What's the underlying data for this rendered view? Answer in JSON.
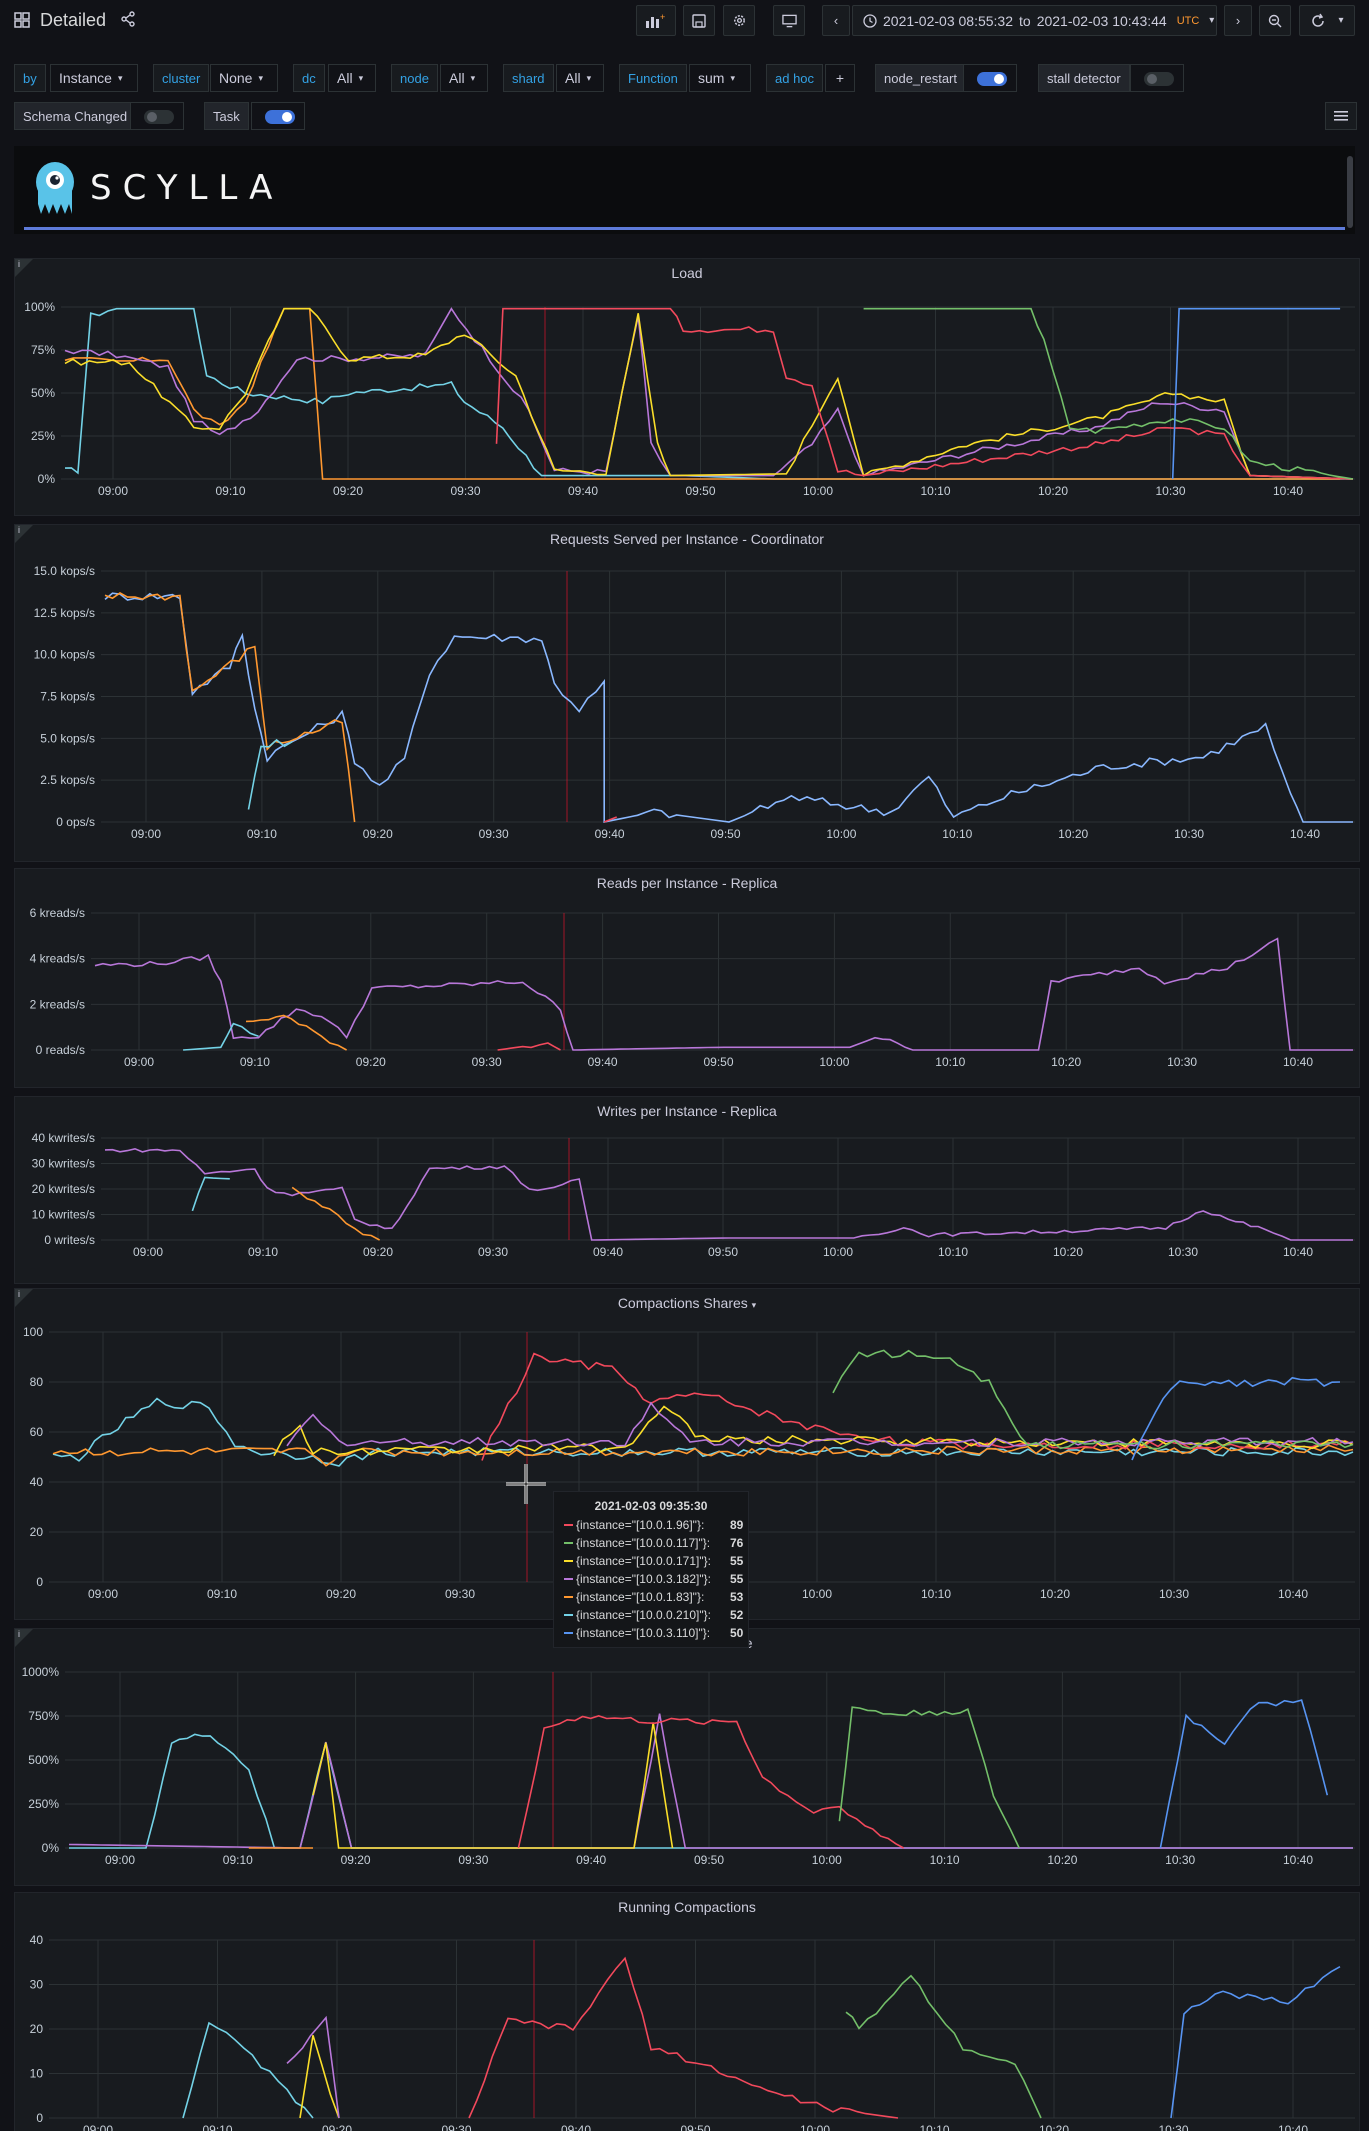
{
  "header": {
    "title": "Detailed",
    "time_from": "2021-02-03 08:55:32",
    "time_to": "2021-02-03 10:43:44",
    "time_sep": "to",
    "timezone": "UTC"
  },
  "variables": [
    {
      "label": "by",
      "value": "Instance"
    },
    {
      "label": "cluster",
      "value": "None"
    },
    {
      "label": "dc",
      "value": "All"
    },
    {
      "label": "node",
      "value": "All"
    },
    {
      "label": "shard",
      "value": "All"
    },
    {
      "label": "Function",
      "value": "sum"
    },
    {
      "label": "ad hoc",
      "value": "+"
    }
  ],
  "annotation_toggles": [
    {
      "label": "node_restart",
      "on": true
    },
    {
      "label": "stall detector",
      "on": false
    },
    {
      "label": "Schema Changed",
      "on": false
    },
    {
      "label": "Task",
      "on": true
    }
  ],
  "logo": {
    "text": "SCYLLA"
  },
  "series_colors": [
    "#f2495c",
    "#73bf69",
    "#fade2a",
    "#b877d9",
    "#ff9830",
    "#8ab8ff",
    "#5794f2",
    "#73d2e6"
  ],
  "panels": [
    {
      "title": "Load",
      "y_ticks": [
        "100%",
        "75%",
        "50%",
        "25%",
        "0%"
      ],
      "x_ticks": [
        "09:00",
        "09:10",
        "09:20",
        "09:30",
        "09:40",
        "09:50",
        "10:00",
        "10:10",
        "10:20",
        "10:30",
        "10:40"
      ]
    },
    {
      "title": "Requests Served per Instance - Coordinator",
      "y_ticks": [
        "15.0 kops/s",
        "12.5 kops/s",
        "10.0 kops/s",
        "7.5 kops/s",
        "5.0 kops/s",
        "2.5 kops/s",
        "0 ops/s"
      ],
      "x_ticks": [
        "09:00",
        "09:10",
        "09:20",
        "09:30",
        "09:40",
        "09:50",
        "10:00",
        "10:10",
        "10:20",
        "10:30",
        "10:40"
      ]
    },
    {
      "title": "Reads per Instance - Replica",
      "y_ticks": [
        "6 kreads/s",
        "4 kreads/s",
        "2 kreads/s",
        "0 reads/s"
      ],
      "x_ticks": [
        "09:00",
        "09:10",
        "09:20",
        "09:30",
        "09:40",
        "09:50",
        "10:00",
        "10:10",
        "10:20",
        "10:30",
        "10:40"
      ]
    },
    {
      "title": "Writes per Instance - Replica",
      "y_ticks": [
        "40 kwrites/s",
        "30 kwrites/s",
        "20 kwrites/s",
        "10 kwrites/s",
        "0 writes/s"
      ],
      "x_ticks": [
        "09:00",
        "09:10",
        "09:20",
        "09:30",
        "09:40",
        "09:50",
        "10:00",
        "10:10",
        "10:20",
        "10:30",
        "10:40"
      ]
    },
    {
      "title": "Compactions Shares",
      "y_ticks": [
        "100",
        "80",
        "60",
        "40",
        "20",
        "0"
      ],
      "x_ticks": [
        "09:00",
        "09:10",
        "09:20",
        "09:30",
        "09:40",
        "09:50",
        "10:00",
        "10:10",
        "10:20",
        "10:30",
        "10:40"
      ]
    },
    {
      "title": "Compactions Shares over Time",
      "title_visible_suffix": "ne",
      "y_ticks": [
        "1000%",
        "750%",
        "500%",
        "250%",
        "0%"
      ],
      "x_ticks": [
        "09:00",
        "09:10",
        "09:20",
        "09:30",
        "09:40",
        "09:50",
        "10:00",
        "10:10",
        "10:20",
        "10:30",
        "10:40"
      ]
    },
    {
      "title": "Running Compactions",
      "y_ticks": [
        "40",
        "30",
        "20",
        "10",
        "0"
      ],
      "x_ticks": [
        "09:00",
        "09:10",
        "09:20",
        "09:30",
        "09:40",
        "09:50",
        "10:00",
        "10:10",
        "10:20",
        "10:30",
        "10:40"
      ]
    }
  ],
  "tooltip": {
    "time": "2021-02-03 09:35:30",
    "rows": [
      {
        "label": "{instance=\"[10.0.1.96]\"}:",
        "value": "89",
        "color": "#f2495c"
      },
      {
        "label": "{instance=\"[10.0.0.117]\"}:",
        "value": "76",
        "color": "#73bf69"
      },
      {
        "label": "{instance=\"[10.0.0.171]\"}:",
        "value": "55",
        "color": "#fade2a"
      },
      {
        "label": "{instance=\"[10.0.3.182]\"}:",
        "value": "55",
        "color": "#b877d9"
      },
      {
        "label": "{instance=\"[10.0.1.83]\"}:",
        "value": "53",
        "color": "#ff9830"
      },
      {
        "label": "{instance=\"[10.0.0.210]\"}:",
        "value": "52",
        "color": "#73d2e6"
      },
      {
        "label": "{instance=\"[10.0.3.110]\"}:",
        "value": "50",
        "color": "#5794f2"
      }
    ]
  }
}
